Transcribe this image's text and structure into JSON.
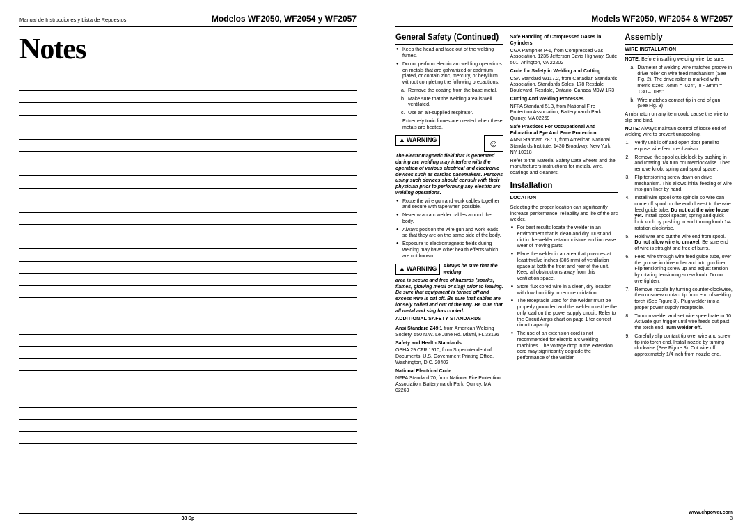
{
  "left": {
    "header_left": "Manual de Instrucciones y Lista de Repuestos",
    "header_right": "Modelos WF2050, WF2054 y WF2057",
    "title": "Notes",
    "line_count": 30,
    "footer": "38 Sp"
  },
  "right": {
    "header_right": "Models WF2050, WF2054 & WF2057",
    "footer": "www.chpower.com",
    "pagenum": "3",
    "col1": {
      "section": "General Safety (Continued)",
      "b1": "Keep the head and face out of the welding fumes.",
      "b2": "Do not perform electric arc welding operations on metals that are galvanized or cadmium plated, or contain zinc, mercury, or beryllium without completing the following precautions:",
      "b2a": "Remove the coating from the base metal.",
      "b2b": "Make sure that the welding area is well ventilated.",
      "b2c": "Use an air-supplied respirator.",
      "b2_tail": "Extremely toxic fumes are created when these metals are heated.",
      "warn1_label": "WARNING",
      "warn1_text": "The electromagnetic field that is generated during arc welding may interfere with the operation of various electrical and electronic devices such as cardiac pacemakers. Persons using such devices should consult with their physician prior to performing any electric arc welding operations.",
      "b3": "Route the wire gun and work cables together and secure with tape when possible.",
      "b4": "Never wrap arc welder cables around the body.",
      "b5": "Always position the wire gun and work leads so that they are on the same side of the body.",
      "b6": "Exposure to electromagnetic fields during welding may have other health effects which are not known.",
      "warn2_label": "WARNING",
      "warn2_lead": "Always be sure that the welding",
      "warn2_text": "area is secure and free of hazards (sparks, flames, glowing metal or slag) prior to leaving. Be sure that equipment is turned off and excess wire is cut off. Be sure that cables are loosely coiled and out of the way. Be sure that all metal and slag has cooled.",
      "sub1": "Additional Safety Standards",
      "std1_t": "Ansi Standard Z49.1",
      "std1": " from American Welding Society, 550 N.W. Le June Rd. Miami, FL 33126",
      "h_shs": "Safety and Health Standards",
      "std2": "OSHA 29 CFR 1910, from Superintendent of Documents, U.S. Government Printing Office, Washington, D.C. 20402",
      "h_nec": "National Electrical Code",
      "std3": "NFPA Standard 70, from National Fire Protection Association, Batterymarch Park, Quincy, MA 02269"
    },
    "col2": {
      "h_gas": "Safe Handling of Compressed Gases in Cylinders",
      "gas": "CGA Pamphlet P-1, from Compressed Gas Association, 1235 Jefferson Davis Highway, Suite 501, Arlington, VA 22202",
      "h_cut": "Code for Safety in Welding and Cutting",
      "cut": "CSA Standard W117.2, from Canadian Standards Association, Standards Sales, 178 Rexdale Boulevard, Rexdale, Ontario, Canada M9W 1R3",
      "h_proc": "Cutting And Welding Processes",
      "proc": "NFPA Standard 51B, from National Fire Protection Association, Batterymarch Park, Quincy, MA 02269",
      "h_eye": "Safe Practices For Occupational And Educational Eye And Face Protection",
      "eye": "ANSI Standard Z87.1, from American National Standards Institute, 1430 Broadway, New York, NY 10018",
      "msds": "Refer to the Material Safety Data Sheets and the manufacturers instructions for metals, wire, coatings and cleaners.",
      "section": "Installation",
      "sub_loc": "Location",
      "loc_intro": "Selecting the proper location can significantly increase performance, reliability and life of the arc welder.",
      "l1": "For best results locate the welder in an environment that is clean and dry. Dust and dirt in the welder retain moisture and increase wear of moving parts.",
      "l2": "Place the welder in an area that provides at least twelve inches (305 mm) of ventilation space at both the front and rear of the unit. Keep all obstructions away from this ventilation space.",
      "l3": "Store flux cored wire in a clean, dry location with low humidity to reduce oxidation.",
      "l4": "The receptacle used for the welder must be properly grounded and the welder must be the only load on the power supply circuit. Refer to the Circuit Amps chart on page 1 for correct circuit capacity.",
      "l5": "The use of an extension cord is not recommended for electric arc welding machines. The voltage drop in the extension cord may significantly degrade the performance of the welder."
    },
    "col3": {
      "section": "Assembly",
      "sub_wire": "Wire Installation",
      "note_lbl": "NOTE:",
      "note": " Before installing welding wire, be sure:",
      "na": "Diameter of welding wire matches groove in drive roller on wire feed mechanism (See Fig. 2). The drive roller is marked with metric sizes: .6mm = .024\", .8 - .9mm = .030 – .035\"",
      "nb": "Wire matches contact tip in end of gun. (See Fig. 3)",
      "mismatch": "A mismatch on any item could cause the wire to slip and bind.",
      "note2_lbl": "NOTE:",
      "note2": " Always maintain control of loose end of welding wire to prevent unspooling.",
      "s1": "Verify unit is off and open door panel to expose wire feed mechanism.",
      "s2": "Remove the spool quick lock by pushing in and rotating 1/4 turn counterclockwise. Then remove knob, spring and spool spacer.",
      "s3": "Flip tensioning screw down on drive mechanism. This allows initial feeding of wire into gun liner by hand.",
      "s4a": "Install wire spool onto spindle so wire can come off spool on the end closest to the wire feed guide tube. ",
      "s4b": "Do not cut the wire loose yet.",
      "s4c": " Install spool spacer, spring and quick lock knob by pushing in and turning knob 1/4 rotation clockwise.",
      "s5a": "Hold wire and cut the wire end from spool. ",
      "s5b": "Do not allow wire to unravel.",
      "s5c": " Be sure end of wire is straight and free of burrs.",
      "s6": "Feed wire through wire feed guide tube, over the groove in drive roller and into gun liner. Flip tensioning screw up and adjust tension by rotating tensioning screw knob. Do not overtighten.",
      "s7": "Remove nozzle by turning counter-clockwise, then unscrew contact tip from end of welding torch (See Figure 3). Plug welder into a proper power supply receptacle.",
      "s8a": "Turn on welder and set wire speed rate to 10. Activate gun trigger until wire feeds out past the torch end. ",
      "s8b": "Turn welder off.",
      "s9": "Carefully slip contact tip over wire and screw tip into torch end. Install nozzle by turning clockwise (See Figure 3). Cut wire off approximately 1/4 inch from nozzle end."
    }
  }
}
